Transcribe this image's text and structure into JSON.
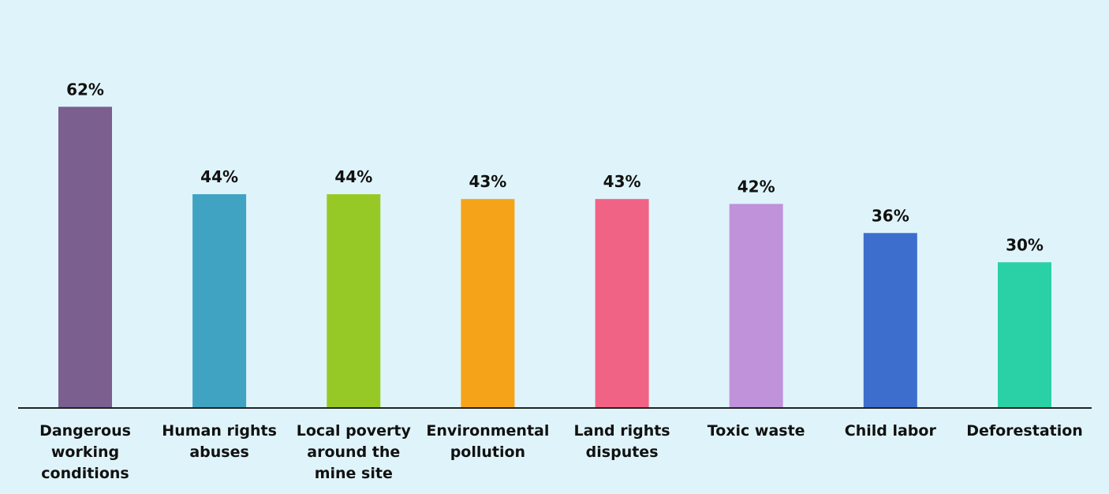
{
  "chart_data": {
    "type": "bar",
    "categories": [
      "Dangerous\nworking\nconditions",
      "Human rights\nabuses",
      "Local poverty\naround the\nmine site",
      "Environmental\npollution",
      "Land rights\ndisputes",
      "Toxic waste",
      "Child labor",
      "Deforestation"
    ],
    "values": [
      62,
      44,
      44,
      43,
      43,
      42,
      36,
      30
    ],
    "value_labels": [
      "62%",
      "44%",
      "44%",
      "43%",
      "43%",
      "42%",
      "36%",
      "30%"
    ],
    "colors": [
      "#7b5f8e",
      "#40a3c2",
      "#97c926",
      "#f5a419",
      "#f06385",
      "#c092da",
      "#3d6ece",
      "#2ad1a6"
    ],
    "ylim": [
      0,
      70
    ],
    "grid": false,
    "legend": "none",
    "title": "",
    "xlabel": "",
    "ylabel": ""
  },
  "background_color": "#dff4fa",
  "axis_color": "#222222"
}
